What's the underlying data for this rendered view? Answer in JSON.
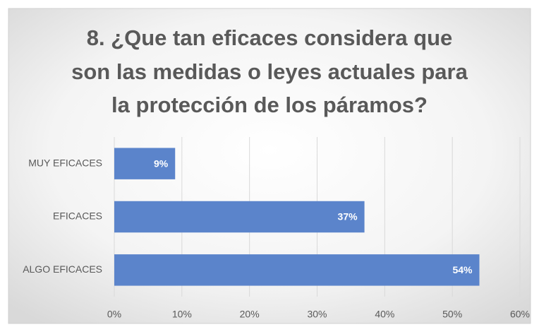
{
  "chart_data": {
    "type": "bar",
    "orientation": "horizontal",
    "title": [
      "8. ¿Que tan eficaces considera que",
      "son las medidas o leyes actuales para",
      "la protección de los páramos?"
    ],
    "categories": [
      "MUY EFICACES",
      "EFICACES",
      "ALGO EFICACES"
    ],
    "values": [
      9,
      37,
      54
    ],
    "value_labels": [
      "9%",
      "37%",
      "54%"
    ],
    "color": "#5b84cb",
    "xlim": [
      0,
      60
    ],
    "xticks": [
      {
        "value": 0,
        "label": "0%"
      },
      {
        "value": 10,
        "label": "10%"
      },
      {
        "value": 20,
        "label": "20%"
      },
      {
        "value": 30,
        "label": "30%"
      },
      {
        "value": 40,
        "label": "40%"
      },
      {
        "value": 50,
        "label": "50%"
      },
      {
        "value": 60,
        "label": "60%"
      }
    ],
    "grid": true
  }
}
